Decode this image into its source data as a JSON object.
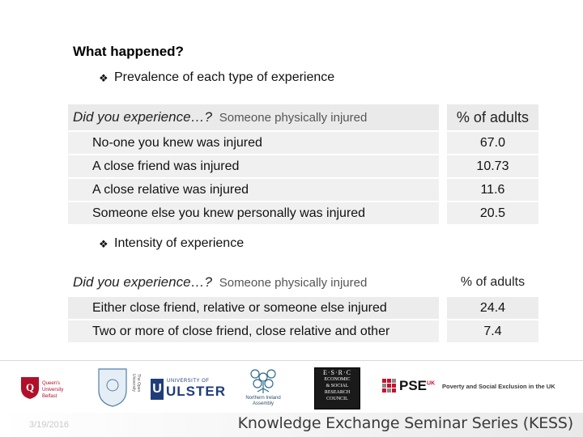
{
  "heading": "What happened?",
  "section1": {
    "bullet": "Prevalence of each type of experience",
    "header": {
      "lead": "Did you experience…?",
      "topic": "Someone physically injured",
      "pct": "% of adults"
    },
    "rows": [
      {
        "label": "No-one you knew was injured",
        "value": "67.0"
      },
      {
        "label": "A close friend was injured",
        "value": "10.73"
      },
      {
        "label": "A close relative was injured",
        "value": "11.6"
      },
      {
        "label": "Someone else you knew personally was injured",
        "value": "20.5"
      }
    ]
  },
  "section2": {
    "bullet": "Intensity of experience",
    "header": {
      "lead": "Did you experience…?",
      "topic": "Someone physically injured",
      "pct": "% of adults"
    },
    "rows": [
      {
        "label": "Either close friend, relative or someone else injured",
        "value": "24.4"
      },
      {
        "label": "Two or more of close friend, close relative and other",
        "value": "7.4"
      }
    ]
  },
  "logos": {
    "queens": {
      "name": "Queen's University",
      "place": "Belfast"
    },
    "open_univ": "The Open University",
    "ulster": {
      "pre": "UNIVERSITY OF",
      "name": "ULSTER"
    },
    "niassembly": [
      "Northern Ireland",
      "Assembly"
    ],
    "esrc": [
      "E·S·R·C",
      "ECONOMIC",
      "& SOCIAL",
      "RESEARCH",
      "COUNCIL"
    ],
    "pse": "PSE",
    "pse_sup": "UK",
    "pse_text": "Poverty and Social Exclusion in the UK"
  },
  "footer": {
    "date": "3/19/2016",
    "kess": "Knowledge Exchange Seminar Series (KESS)"
  },
  "colors": {
    "ulster_blue": "#1f3d7a",
    "pse_red": "#c8102e",
    "queens_red": "#b0102a"
  }
}
